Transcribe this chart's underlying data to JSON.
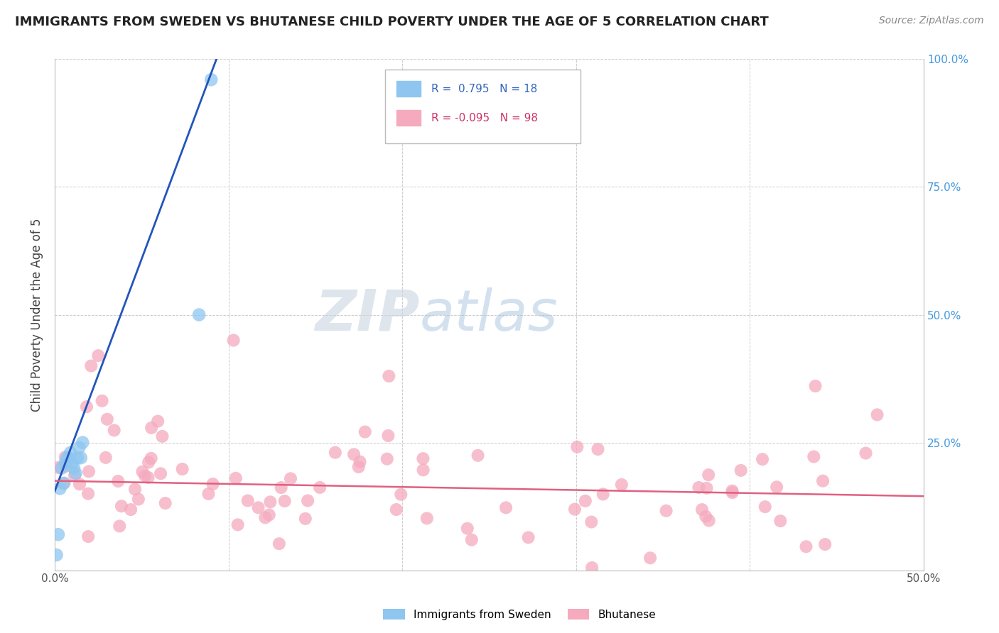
{
  "title": "IMMIGRANTS FROM SWEDEN VS BHUTANESE CHILD POVERTY UNDER THE AGE OF 5 CORRELATION CHART",
  "source": "Source: ZipAtlas.com",
  "ylabel": "Child Poverty Under the Age of 5",
  "xlim": [
    0.0,
    0.5
  ],
  "ylim": [
    0.0,
    1.0
  ],
  "xticks": [
    0.0,
    0.1,
    0.2,
    0.3,
    0.4,
    0.5
  ],
  "xtick_labels": [
    "0.0%",
    "",
    "",
    "",
    "",
    "50.0%"
  ],
  "yticks": [
    0.0,
    0.25,
    0.5,
    0.75,
    1.0
  ],
  "right_ytick_labels": [
    "",
    "25.0%",
    "50.0%",
    "75.0%",
    "100.0%"
  ],
  "blue_R": 0.795,
  "blue_N": 18,
  "pink_R": -0.095,
  "pink_N": 98,
  "blue_color": "#8EC6F0",
  "pink_color": "#F5AABE",
  "blue_line_color": "#2255BB",
  "pink_line_color": "#E06080",
  "watermark_zip": "ZIP",
  "watermark_atlas": "atlas",
  "legend_label_blue": "Immigrants from Sweden",
  "legend_label_pink": "Bhutanese",
  "blue_scatter_x": [
    0.001,
    0.002,
    0.003,
    0.004,
    0.005,
    0.006,
    0.007,
    0.008,
    0.009,
    0.01,
    0.011,
    0.012,
    0.013,
    0.014,
    0.015,
    0.016,
    0.083,
    0.09
  ],
  "blue_scatter_y": [
    0.03,
    0.07,
    0.16,
    0.2,
    0.17,
    0.21,
    0.22,
    0.22,
    0.23,
    0.21,
    0.2,
    0.19,
    0.22,
    0.24,
    0.22,
    0.25,
    0.5,
    0.96
  ],
  "blue_line_x0": 0.0,
  "blue_line_y0": 0.155,
  "blue_line_x1": 0.093,
  "blue_line_y1": 1.0,
  "pink_line_x0": 0.0,
  "pink_line_y0": 0.175,
  "pink_line_x1": 0.5,
  "pink_line_y1": 0.145
}
